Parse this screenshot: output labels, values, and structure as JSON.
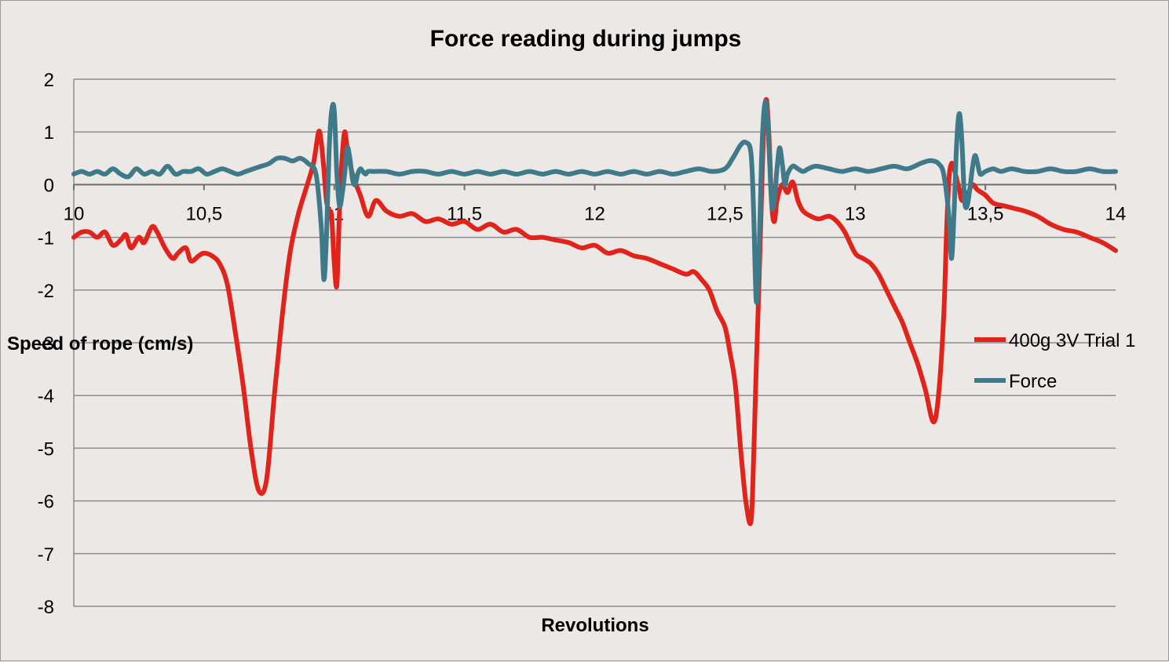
{
  "chart_data": {
    "type": "line",
    "title": "Force reading during jumps",
    "xlabel": "Revolutions",
    "ylabel": "Speed of rope (cm/s)",
    "xlim": [
      10,
      14
    ],
    "ylim": [
      -8,
      2
    ],
    "x_ticks": [
      "10",
      "10,5",
      "11",
      "11,5",
      "12",
      "12,5",
      "13",
      "13,5",
      "14"
    ],
    "x_tick_values": [
      10,
      10.5,
      11,
      11.5,
      12,
      12.5,
      13,
      13.5,
      14
    ],
    "y_ticks": [
      "2",
      "1",
      "0",
      "-1",
      "-2",
      "-3",
      "-4",
      "-5",
      "-6",
      "-7",
      "-8"
    ],
    "y_tick_values": [
      2,
      1,
      0,
      -1,
      -2,
      -3,
      -4,
      -5,
      -6,
      -7,
      -8
    ],
    "grid": true,
    "legend_position": "right",
    "series": [
      {
        "name": "400g 3V Trial 1",
        "color": "#e0241c",
        "x": [
          10.0,
          10.03,
          10.06,
          10.09,
          10.12,
          10.15,
          10.18,
          10.2,
          10.22,
          10.25,
          10.27,
          10.3,
          10.32,
          10.35,
          10.38,
          10.4,
          10.43,
          10.45,
          10.48,
          10.5,
          10.53,
          10.56,
          10.59,
          10.62,
          10.65,
          10.68,
          10.71,
          10.74,
          10.77,
          10.8,
          10.83,
          10.86,
          10.89,
          10.92,
          10.94,
          10.95,
          10.96,
          10.97,
          10.98,
          10.99,
          11.0,
          11.01,
          11.02,
          11.03,
          11.04,
          11.05,
          11.07,
          11.1,
          11.13,
          11.16,
          11.2,
          11.25,
          11.3,
          11.35,
          11.4,
          11.45,
          11.5,
          11.55,
          11.6,
          11.65,
          11.7,
          11.75,
          11.8,
          11.85,
          11.9,
          11.95,
          12.0,
          12.05,
          12.1,
          12.15,
          12.2,
          12.25,
          12.3,
          12.35,
          12.38,
          12.41,
          12.44,
          12.47,
          12.5,
          12.52,
          12.54,
          12.56,
          12.58,
          12.6,
          12.61,
          12.62,
          12.63,
          12.64,
          12.65,
          12.66,
          12.67,
          12.68,
          12.69,
          12.7,
          12.72,
          12.74,
          12.76,
          12.78,
          12.8,
          12.83,
          12.86,
          12.9,
          12.93,
          12.96,
          13.0,
          13.03,
          13.06,
          13.09,
          13.12,
          13.15,
          13.18,
          13.21,
          13.24,
          13.27,
          13.3,
          13.32,
          13.34,
          13.35,
          13.36,
          13.37,
          13.38,
          13.39,
          13.4,
          13.41,
          13.43,
          13.45,
          13.47,
          13.5,
          13.53,
          13.57,
          13.61,
          13.65,
          13.7,
          13.75,
          13.8,
          13.85,
          13.9,
          13.95,
          14.0
        ],
        "y": [
          -1.0,
          -0.9,
          -0.9,
          -1.0,
          -0.9,
          -1.15,
          -1.05,
          -0.95,
          -1.2,
          -1.0,
          -1.1,
          -0.8,
          -0.9,
          -1.2,
          -1.4,
          -1.3,
          -1.2,
          -1.45,
          -1.35,
          -1.3,
          -1.35,
          -1.5,
          -1.9,
          -2.8,
          -3.8,
          -5.0,
          -5.8,
          -5.6,
          -4.0,
          -2.5,
          -1.3,
          -0.6,
          -0.1,
          0.4,
          1.0,
          0.8,
          0.3,
          -0.3,
          -0.5,
          -0.6,
          -1.5,
          -1.9,
          -0.5,
          0.5,
          1.0,
          0.7,
          0.2,
          -0.2,
          -0.6,
          -0.3,
          -0.5,
          -0.6,
          -0.55,
          -0.7,
          -0.65,
          -0.75,
          -0.7,
          -0.85,
          -0.75,
          -0.9,
          -0.85,
          -1.0,
          -1.0,
          -1.05,
          -1.1,
          -1.2,
          -1.15,
          -1.3,
          -1.25,
          -1.35,
          -1.4,
          -1.5,
          -1.6,
          -1.7,
          -1.65,
          -1.8,
          -2.0,
          -2.4,
          -2.7,
          -3.2,
          -3.8,
          -5.0,
          -6.0,
          -6.4,
          -5.2,
          -3.5,
          -2.0,
          -0.3,
          1.2,
          1.6,
          0.8,
          -0.4,
          -0.7,
          -0.3,
          0.0,
          -0.15,
          0.05,
          -0.3,
          -0.5,
          -0.6,
          -0.65,
          -0.6,
          -0.7,
          -0.9,
          -1.3,
          -1.4,
          -1.5,
          -1.7,
          -2.0,
          -2.3,
          -2.6,
          -3.0,
          -3.4,
          -3.9,
          -4.5,
          -4.0,
          -2.5,
          -1.0,
          0.1,
          0.4,
          0.3,
          0.1,
          -0.1,
          -0.3,
          -0.2,
          0.0,
          -0.1,
          -0.2,
          -0.35,
          -0.4,
          -0.45,
          -0.5,
          -0.6,
          -0.75,
          -0.85,
          -0.9,
          -1.0,
          -1.1,
          -1.25
        ]
      },
      {
        "name": "Force",
        "color": "#3e7a8a",
        "x": [
          10.0,
          10.03,
          10.06,
          10.09,
          10.12,
          10.15,
          10.18,
          10.21,
          10.24,
          10.27,
          10.3,
          10.33,
          10.36,
          10.39,
          10.42,
          10.45,
          10.48,
          10.51,
          10.54,
          10.57,
          10.6,
          10.63,
          10.66,
          10.69,
          10.72,
          10.75,
          10.78,
          10.81,
          10.84,
          10.87,
          10.9,
          10.93,
          10.95,
          10.96,
          10.97,
          10.98,
          10.99,
          11.0,
          11.01,
          11.02,
          11.03,
          11.04,
          11.05,
          11.06,
          11.07,
          11.08,
          11.09,
          11.1,
          11.11,
          11.12,
          11.13,
          11.15,
          11.2,
          11.25,
          11.3,
          11.35,
          11.4,
          11.45,
          11.5,
          11.55,
          11.6,
          11.65,
          11.7,
          11.75,
          11.8,
          11.85,
          11.9,
          11.95,
          12.0,
          12.05,
          12.1,
          12.15,
          12.2,
          12.25,
          12.3,
          12.35,
          12.4,
          12.45,
          12.5,
          12.53,
          12.56,
          12.58,
          12.6,
          12.61,
          12.62,
          12.63,
          12.64,
          12.65,
          12.66,
          12.67,
          12.68,
          12.69,
          12.7,
          12.71,
          12.72,
          12.73,
          12.74,
          12.76,
          12.78,
          12.8,
          12.82,
          12.85,
          12.9,
          12.95,
          13.0,
          13.05,
          13.1,
          13.15,
          13.2,
          13.25,
          13.28,
          13.3,
          13.32,
          13.34,
          13.36,
          13.37,
          13.38,
          13.39,
          13.4,
          13.41,
          13.42,
          13.43,
          13.44,
          13.45,
          13.46,
          13.47,
          13.48,
          13.5,
          13.53,
          13.56,
          13.6,
          13.65,
          13.7,
          13.75,
          13.8,
          13.85,
          13.9,
          13.95,
          14.0
        ],
        "y": [
          0.2,
          0.25,
          0.2,
          0.25,
          0.2,
          0.3,
          0.2,
          0.15,
          0.3,
          0.2,
          0.25,
          0.2,
          0.35,
          0.2,
          0.25,
          0.25,
          0.3,
          0.2,
          0.25,
          0.3,
          0.25,
          0.2,
          0.25,
          0.3,
          0.35,
          0.4,
          0.5,
          0.5,
          0.45,
          0.5,
          0.4,
          0.2,
          -0.8,
          -1.8,
          -1.0,
          0.6,
          1.4,
          1.4,
          0.2,
          -0.4,
          -0.2,
          0.2,
          0.7,
          0.5,
          0.1,
          0.0,
          0.2,
          0.3,
          0.25,
          0.2,
          0.25,
          0.25,
          0.25,
          0.2,
          0.25,
          0.25,
          0.2,
          0.25,
          0.2,
          0.25,
          0.2,
          0.25,
          0.2,
          0.25,
          0.2,
          0.25,
          0.2,
          0.25,
          0.2,
          0.25,
          0.2,
          0.25,
          0.2,
          0.25,
          0.2,
          0.25,
          0.3,
          0.25,
          0.3,
          0.5,
          0.75,
          0.8,
          0.6,
          -0.5,
          -2.2,
          -1.5,
          0.4,
          1.4,
          1.5,
          0.6,
          -0.4,
          -0.3,
          0.3,
          0.7,
          0.4,
          0.0,
          0.2,
          0.35,
          0.3,
          0.25,
          0.3,
          0.35,
          0.3,
          0.25,
          0.3,
          0.25,
          0.3,
          0.35,
          0.3,
          0.4,
          0.45,
          0.45,
          0.4,
          0.2,
          -0.6,
          -1.4,
          -0.5,
          0.8,
          1.35,
          0.8,
          -0.3,
          -0.4,
          -0.1,
          0.3,
          0.55,
          0.4,
          0.2,
          0.25,
          0.3,
          0.25,
          0.3,
          0.25,
          0.25,
          0.3,
          0.25,
          0.25,
          0.3,
          0.25,
          0.25
        ]
      }
    ]
  }
}
